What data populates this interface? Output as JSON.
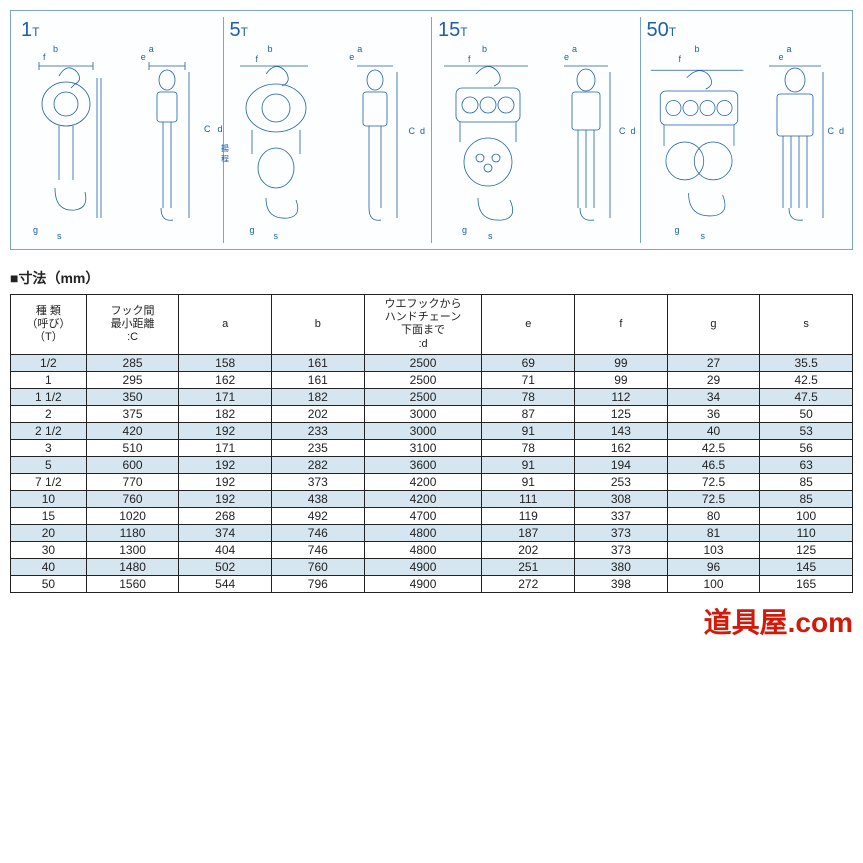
{
  "panels": [
    {
      "label_num": "1",
      "label_unit": "T"
    },
    {
      "label_num": "5",
      "label_unit": "T"
    },
    {
      "label_num": "15",
      "label_unit": "T"
    },
    {
      "label_num": "50",
      "label_unit": "T"
    }
  ],
  "dim_letters": {
    "a": "a",
    "b": "b",
    "c": "C",
    "d": "d",
    "e": "e",
    "f": "f",
    "g": "g",
    "s": "s"
  },
  "lift_note": "揚\n程",
  "section_title": "■寸法（mm）",
  "columns": [
    "種 類\n（呼び）\n（T）",
    "フック間\n最小距離\n:C",
    "a",
    "b",
    "ウエフックから\nハンドチェーン\n下面まで\n:d",
    "e",
    "f",
    "g",
    "s"
  ],
  "col_widths_pct": [
    9,
    11,
    11,
    11,
    14,
    11,
    11,
    11,
    11
  ],
  "rows": [
    {
      "shade": true,
      "cells": [
        "1/2",
        "285",
        "158",
        "161",
        "2500",
        "69",
        "99",
        "27",
        "35.5"
      ]
    },
    {
      "shade": false,
      "cells": [
        "1",
        "295",
        "162",
        "161",
        "2500",
        "71",
        "99",
        "29",
        "42.5"
      ]
    },
    {
      "shade": true,
      "cells": [
        "1 1/2",
        "350",
        "171",
        "182",
        "2500",
        "78",
        "112",
        "34",
        "47.5"
      ]
    },
    {
      "shade": false,
      "cells": [
        "2",
        "375",
        "182",
        "202",
        "3000",
        "87",
        "125",
        "36",
        "50"
      ]
    },
    {
      "shade": true,
      "cells": [
        "2 1/2",
        "420",
        "192",
        "233",
        "3000",
        "91",
        "143",
        "40",
        "53"
      ]
    },
    {
      "shade": false,
      "cells": [
        "3",
        "510",
        "171",
        "235",
        "3100",
        "78",
        "162",
        "42.5",
        "56"
      ]
    },
    {
      "shade": true,
      "cells": [
        "5",
        "600",
        "192",
        "282",
        "3600",
        "91",
        "194",
        "46.5",
        "63"
      ]
    },
    {
      "shade": false,
      "cells": [
        "7 1/2",
        "770",
        "192",
        "373",
        "4200",
        "91",
        "253",
        "72.5",
        "85"
      ]
    },
    {
      "shade": true,
      "cells": [
        "10",
        "760",
        "192",
        "438",
        "4200",
        "111",
        "308",
        "72.5",
        "85"
      ]
    },
    {
      "shade": false,
      "cells": [
        "15",
        "1020",
        "268",
        "492",
        "4700",
        "119",
        "337",
        "80",
        "100"
      ]
    },
    {
      "shade": true,
      "cells": [
        "20",
        "1180",
        "374",
        "746",
        "4800",
        "187",
        "373",
        "81",
        "110"
      ]
    },
    {
      "shade": false,
      "cells": [
        "30",
        "1300",
        "404",
        "746",
        "4800",
        "202",
        "373",
        "103",
        "125"
      ]
    },
    {
      "shade": true,
      "cells": [
        "40",
        "1480",
        "502",
        "760",
        "4900",
        "251",
        "380",
        "96",
        "145"
      ]
    },
    {
      "shade": false,
      "cells": [
        "50",
        "1560",
        "544",
        "796",
        "4900",
        "272",
        "398",
        "100",
        "165"
      ]
    }
  ],
  "row_stripe_colors": {
    "shaded": "#d5e6f0",
    "plain": "#ffffff"
  },
  "brand_text": "道具屋.com",
  "brand_color": "#d11a0a"
}
